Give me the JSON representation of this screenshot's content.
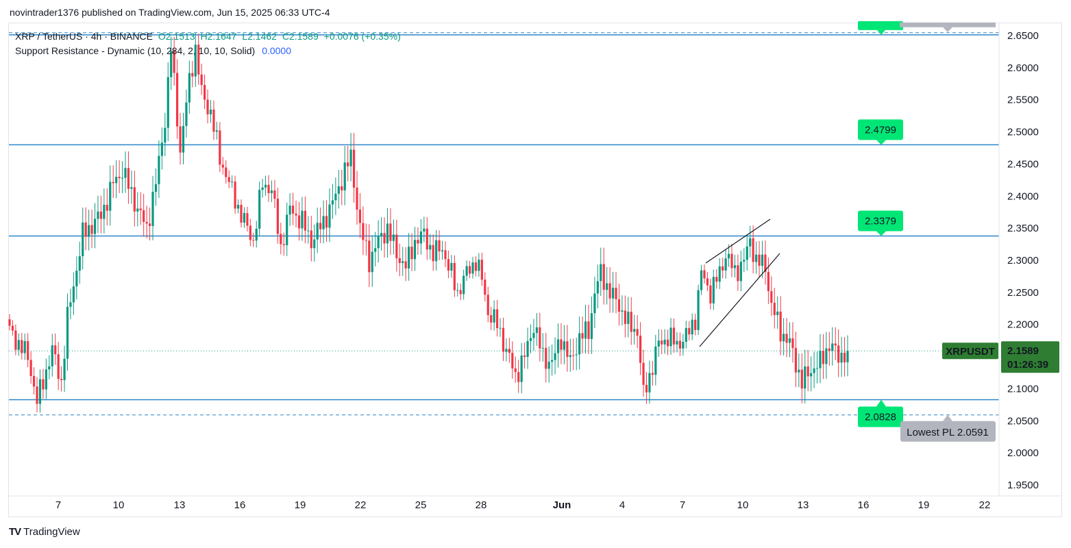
{
  "header": {
    "published_by": "novintrader1376 published on TradingView.com, Jun 15, 2025 06:33 UTC-4"
  },
  "legend": {
    "symbol": "XRP / TetherUS · 4h · BINANCE",
    "open": "O2.1513",
    "high": "H2.1647",
    "low": "L2.1462",
    "close": "C2.1589",
    "change": "+0.0076 (+0.35%)",
    "indicator": "Support Resistance - Dynamic (10, 284, 2, 10, 10, Solid)",
    "indicator_value": "0.0000"
  },
  "footer": {
    "brand": "TradingView"
  },
  "colors": {
    "up": "#089981",
    "down": "#f23645",
    "level": "#2e86c8",
    "tag": "#00e676",
    "price_tag": "#2e7d32",
    "gray_tag": "#b2b5be"
  },
  "icons": {
    "logo": "tradingview-logo-icon"
  },
  "chart_data": {
    "type": "candlestick",
    "symbol": "XRPUSDT",
    "timeframe": "4h",
    "ylim": [
      1.93,
      2.67
    ],
    "y_ticks": [
      "2.6500",
      "2.6000",
      "2.5500",
      "2.5000",
      "2.4500",
      "2.4000",
      "2.3500",
      "2.3000",
      "2.2500",
      "2.2000",
      "2.1500",
      "2.1000",
      "2.0500",
      "2.0000",
      "1.9500"
    ],
    "x_ticks": [
      "7",
      "10",
      "13",
      "16",
      "19",
      "22",
      "25",
      "28",
      "Jun",
      "4",
      "7",
      "10",
      "13",
      "16",
      "19",
      "22"
    ],
    "levels": [
      {
        "value": 2.6512,
        "label": ""
      },
      {
        "value": 2.4799,
        "label": "2.4799"
      },
      {
        "value": 2.3379,
        "label": "2.3379"
      },
      {
        "value": 2.0828,
        "label": "2.0828"
      }
    ],
    "dashed_levels": [
      2.6545,
      2.0591
    ],
    "lowest_pl_label": "Lowest PL 2.0591",
    "last_price": "2.1589",
    "countdown": "01:26:39",
    "symbol_label": "XRPUSDT",
    "anchors": [
      [
        0,
        2.19
      ],
      [
        6,
        2.15
      ],
      [
        9,
        2.08
      ],
      [
        14,
        2.16
      ],
      [
        17,
        2.11
      ],
      [
        19,
        2.21
      ],
      [
        24,
        2.34
      ],
      [
        30,
        2.37
      ],
      [
        34,
        2.42
      ],
      [
        37,
        2.44
      ],
      [
        42,
        2.38
      ],
      [
        45,
        2.35
      ],
      [
        48,
        2.42
      ],
      [
        51,
        2.52
      ],
      [
        53,
        2.63
      ],
      [
        56,
        2.47
      ],
      [
        59,
        2.58
      ],
      [
        61,
        2.63
      ],
      [
        63,
        2.56
      ],
      [
        66,
        2.53
      ],
      [
        69,
        2.46
      ],
      [
        72,
        2.42
      ],
      [
        76,
        2.37
      ],
      [
        80,
        2.33
      ],
      [
        83,
        2.42
      ],
      [
        86,
        2.41
      ],
      [
        89,
        2.32
      ],
      [
        92,
        2.38
      ],
      [
        96,
        2.36
      ],
      [
        99,
        2.33
      ],
      [
        103,
        2.36
      ],
      [
        107,
        2.4
      ],
      [
        110,
        2.44
      ],
      [
        112,
        2.46
      ],
      [
        115,
        2.35
      ],
      [
        118,
        2.3
      ],
      [
        121,
        2.33
      ],
      [
        124,
        2.35
      ],
      [
        127,
        2.31
      ],
      [
        130,
        2.29
      ],
      [
        133,
        2.33
      ],
      [
        136,
        2.34
      ],
      [
        139,
        2.31
      ],
      [
        142,
        2.32
      ],
      [
        144,
        2.29
      ],
      [
        147,
        2.25
      ],
      [
        150,
        2.28
      ],
      [
        153,
        2.3
      ],
      [
        155,
        2.27
      ],
      [
        157,
        2.22
      ],
      [
        160,
        2.2
      ],
      [
        163,
        2.16
      ],
      [
        166,
        2.12
      ],
      [
        169,
        2.15
      ],
      [
        172,
        2.2
      ],
      [
        175,
        2.15
      ],
      [
        178,
        2.14
      ],
      [
        181,
        2.18
      ],
      [
        184,
        2.14
      ],
      [
        187,
        2.18
      ],
      [
        190,
        2.19
      ],
      [
        192,
        2.25
      ],
      [
        194,
        2.28
      ],
      [
        197,
        2.25
      ],
      [
        200,
        2.23
      ],
      [
        203,
        2.2
      ],
      [
        206,
        2.19
      ],
      [
        208,
        2.09
      ],
      [
        210,
        2.12
      ],
      [
        213,
        2.17
      ],
      [
        216,
        2.18
      ],
      [
        219,
        2.17
      ],
      [
        222,
        2.18
      ],
      [
        225,
        2.21
      ],
      [
        227,
        2.28
      ],
      [
        230,
        2.25
      ],
      [
        233,
        2.28
      ],
      [
        235,
        2.31
      ],
      [
        238,
        2.28
      ],
      [
        241,
        2.3
      ],
      [
        243,
        2.33
      ],
      [
        245,
        2.3
      ],
      [
        248,
        2.29
      ],
      [
        250,
        2.23
      ],
      [
        253,
        2.19
      ],
      [
        256,
        2.17
      ],
      [
        258,
        2.14
      ],
      [
        260,
        2.11
      ],
      [
        263,
        2.13
      ],
      [
        266,
        2.14
      ],
      [
        269,
        2.17
      ],
      [
        272,
        2.15
      ],
      [
        275,
        2.1589
      ]
    ]
  }
}
